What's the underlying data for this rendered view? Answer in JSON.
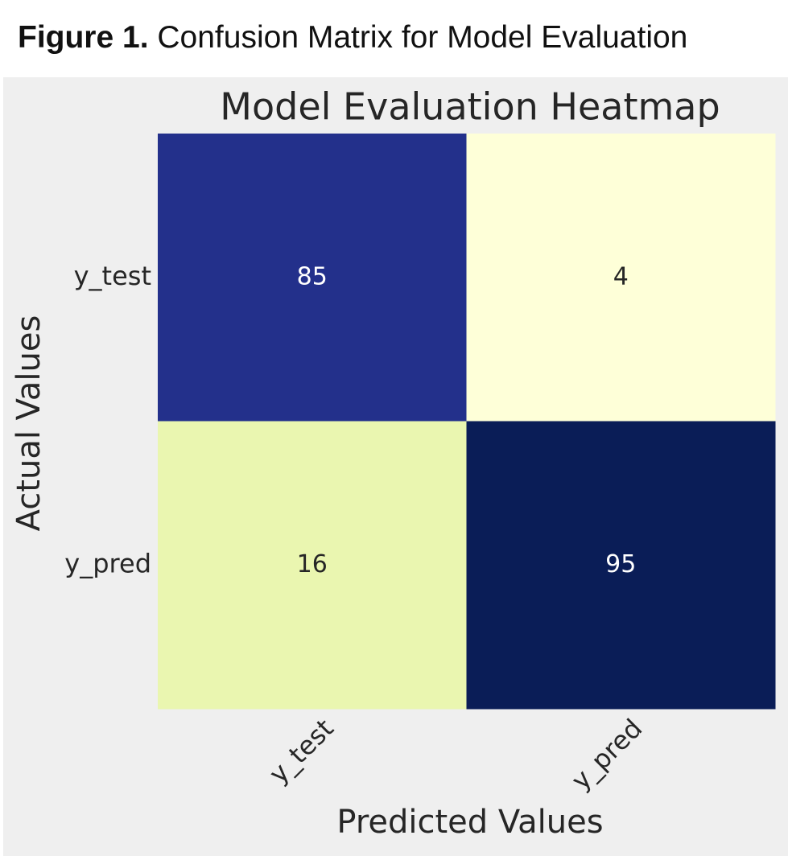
{
  "caption": {
    "label": "Figure 1.",
    "text": "Confusion Matrix for Model Evaluation"
  },
  "chart_data": {
    "type": "heatmap",
    "title": "Model Evaluation Heatmap",
    "xlabel": "Predicted Values",
    "ylabel": "Actual Values",
    "x_categories": [
      "y_test",
      "y_pred"
    ],
    "y_categories": [
      "y_test",
      "y_pred"
    ],
    "values": [
      [
        85,
        4
      ],
      [
        16,
        95
      ]
    ],
    "annotations": true,
    "colormap": "YlGnBu",
    "colorbar": false,
    "grid": false,
    "cell_colors": [
      [
        "#23308b",
        "#feffd8"
      ],
      [
        "#eaf6b0",
        "#0a1d57"
      ]
    ],
    "annotation_colors": [
      [
        "#ffffff",
        "#262626"
      ],
      [
        "#262626",
        "#ffffff"
      ]
    ],
    "text_color": "#262626",
    "background": "#efefef"
  }
}
